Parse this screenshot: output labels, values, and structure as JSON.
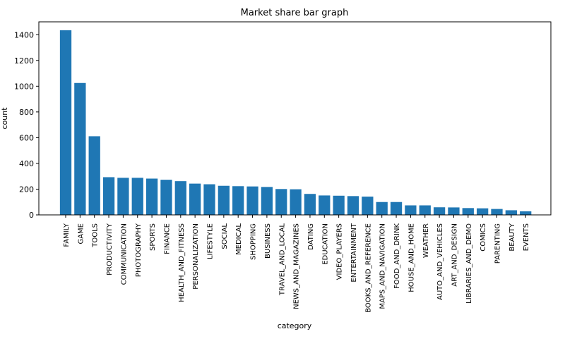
{
  "chart_data": {
    "type": "bar",
    "title": "Market share bar graph",
    "xlabel": "category",
    "ylabel": "count",
    "ylim": [
      0,
      1500
    ],
    "yticks": [
      0,
      200,
      400,
      600,
      800,
      1000,
      1200,
      1400
    ],
    "grid": false,
    "bar_color": "#1f77b4",
    "categories": [
      "FAMILY",
      "GAME",
      "TOOLS",
      "PRODUCTIVITY",
      "COMMUNICATION",
      "PHOTOGRAPHY",
      "SPORTS",
      "FINANCE",
      "HEALTH_AND_FITNESS",
      "PERSONALIZATION",
      "LIFESTYLE",
      "SOCIAL",
      "MEDICAL",
      "SHOPPING",
      "BUSINESS",
      "TRAVEL_AND_LOCAL",
      "NEWS_AND_MAGAZINES",
      "DATING",
      "EDUCATION",
      "VIDEO_PLAYERS",
      "ENTERTAINMENT",
      "BOOKS_AND_REFERENCE",
      "MAPS_AND_NAVIGATION",
      "FOOD_AND_DRINK",
      "HOUSE_AND_HOME",
      "WEATHER",
      "AUTO_AND_VEHICLES",
      "ART_AND_DESIGN",
      "LIBRARIES_AND_DEMO",
      "COMICS",
      "PARENTING",
      "BEAUTY",
      "EVENTS"
    ],
    "values": [
      1435,
      1025,
      611,
      293,
      288,
      288,
      282,
      273,
      262,
      243,
      238,
      226,
      223,
      221,
      217,
      201,
      199,
      163,
      151,
      149,
      146,
      142,
      100,
      100,
      74,
      74,
      59,
      58,
      53,
      51,
      46,
      36,
      28
    ]
  }
}
